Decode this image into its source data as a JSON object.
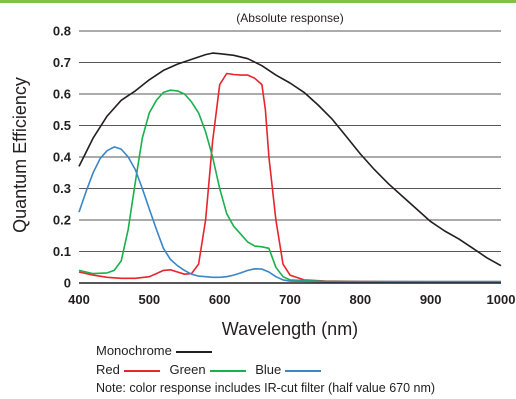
{
  "colors": {
    "top_bar": "#7dc242",
    "monochrome": "#231f20",
    "red": "#e8242c",
    "green": "#1ab04b",
    "blue": "#3a86c8",
    "grid": "#231f20"
  },
  "chart_data": {
    "type": "line",
    "title": "(Absolute response)",
    "xlabel": "Wavelength (nm)",
    "ylabel": "Quantum Efficiency",
    "xlim": [
      400,
      1000
    ],
    "ylim": [
      0,
      0.8
    ],
    "xticks": [
      "400",
      "500",
      "600",
      "700",
      "800",
      "900",
      "1000"
    ],
    "yticks": [
      "0",
      "0.1",
      "0.2",
      "0.3",
      "0.4",
      "0.5",
      "0.6",
      "0.7",
      "0.8"
    ],
    "grid": "horizontal",
    "series": [
      {
        "name": "Monochrome",
        "color": "#231f20",
        "points": [
          [
            400,
            0.37
          ],
          [
            420,
            0.46
          ],
          [
            440,
            0.53
          ],
          [
            460,
            0.58
          ],
          [
            480,
            0.61
          ],
          [
            500,
            0.645
          ],
          [
            520,
            0.675
          ],
          [
            540,
            0.695
          ],
          [
            560,
            0.71
          ],
          [
            580,
            0.725
          ],
          [
            590,
            0.73
          ],
          [
            600,
            0.728
          ],
          [
            620,
            0.723
          ],
          [
            640,
            0.712
          ],
          [
            660,
            0.69
          ],
          [
            680,
            0.66
          ],
          [
            700,
            0.635
          ],
          [
            720,
            0.605
          ],
          [
            740,
            0.565
          ],
          [
            760,
            0.52
          ],
          [
            780,
            0.465
          ],
          [
            800,
            0.41
          ],
          [
            820,
            0.36
          ],
          [
            840,
            0.315
          ],
          [
            860,
            0.275
          ],
          [
            880,
            0.235
          ],
          [
            900,
            0.195
          ],
          [
            920,
            0.165
          ],
          [
            940,
            0.14
          ],
          [
            960,
            0.11
          ],
          [
            980,
            0.08
          ],
          [
            1000,
            0.055
          ]
        ]
      },
      {
        "name": "Red",
        "color": "#e8242c",
        "points": [
          [
            400,
            0.035
          ],
          [
            420,
            0.025
          ],
          [
            440,
            0.018
          ],
          [
            460,
            0.015
          ],
          [
            480,
            0.015
          ],
          [
            500,
            0.02
          ],
          [
            510,
            0.03
          ],
          [
            520,
            0.04
          ],
          [
            530,
            0.042
          ],
          [
            540,
            0.035
          ],
          [
            550,
            0.028
          ],
          [
            560,
            0.03
          ],
          [
            570,
            0.06
          ],
          [
            580,
            0.2
          ],
          [
            590,
            0.45
          ],
          [
            600,
            0.63
          ],
          [
            610,
            0.665
          ],
          [
            620,
            0.662
          ],
          [
            630,
            0.66
          ],
          [
            640,
            0.66
          ],
          [
            650,
            0.65
          ],
          [
            660,
            0.63
          ],
          [
            665,
            0.55
          ],
          [
            670,
            0.4
          ],
          [
            680,
            0.2
          ],
          [
            690,
            0.06
          ],
          [
            700,
            0.025
          ],
          [
            720,
            0.01
          ],
          [
            750,
            0.006
          ],
          [
            800,
            0.005
          ],
          [
            900,
            0.004
          ],
          [
            1000,
            0.004
          ]
        ]
      },
      {
        "name": "Green",
        "color": "#1ab04b",
        "points": [
          [
            400,
            0.04
          ],
          [
            420,
            0.03
          ],
          [
            440,
            0.032
          ],
          [
            450,
            0.04
          ],
          [
            460,
            0.07
          ],
          [
            470,
            0.17
          ],
          [
            480,
            0.32
          ],
          [
            490,
            0.46
          ],
          [
            500,
            0.54
          ],
          [
            510,
            0.58
          ],
          [
            520,
            0.605
          ],
          [
            530,
            0.612
          ],
          [
            540,
            0.61
          ],
          [
            550,
            0.6
          ],
          [
            560,
            0.575
          ],
          [
            570,
            0.54
          ],
          [
            580,
            0.48
          ],
          [
            590,
            0.4
          ],
          [
            600,
            0.3
          ],
          [
            610,
            0.22
          ],
          [
            620,
            0.18
          ],
          [
            630,
            0.155
          ],
          [
            640,
            0.13
          ],
          [
            650,
            0.117
          ],
          [
            660,
            0.115
          ],
          [
            670,
            0.11
          ],
          [
            680,
            0.05
          ],
          [
            690,
            0.02
          ],
          [
            700,
            0.01
          ],
          [
            750,
            0.005
          ],
          [
            800,
            0.004
          ],
          [
            1000,
            0.004
          ]
        ]
      },
      {
        "name": "Blue",
        "color": "#3a86c8",
        "points": [
          [
            400,
            0.225
          ],
          [
            410,
            0.29
          ],
          [
            420,
            0.35
          ],
          [
            430,
            0.395
          ],
          [
            440,
            0.42
          ],
          [
            450,
            0.432
          ],
          [
            460,
            0.425
          ],
          [
            470,
            0.4
          ],
          [
            480,
            0.36
          ],
          [
            490,
            0.3
          ],
          [
            500,
            0.235
          ],
          [
            510,
            0.17
          ],
          [
            520,
            0.11
          ],
          [
            530,
            0.075
          ],
          [
            540,
            0.055
          ],
          [
            550,
            0.04
          ],
          [
            560,
            0.028
          ],
          [
            570,
            0.022
          ],
          [
            580,
            0.02
          ],
          [
            590,
            0.018
          ],
          [
            600,
            0.018
          ],
          [
            610,
            0.02
          ],
          [
            620,
            0.025
          ],
          [
            630,
            0.032
          ],
          [
            640,
            0.04
          ],
          [
            650,
            0.045
          ],
          [
            660,
            0.044
          ],
          [
            670,
            0.035
          ],
          [
            680,
            0.02
          ],
          [
            690,
            0.01
          ],
          [
            700,
            0.006
          ],
          [
            750,
            0.004
          ],
          [
            1000,
            0.004
          ]
        ]
      }
    ]
  },
  "legend": {
    "monochrome": "Monochrome",
    "red": "Red",
    "green": "Green",
    "blue": "Blue",
    "note": "Note: color response includes IR-cut filter (half value 670 nm)"
  }
}
